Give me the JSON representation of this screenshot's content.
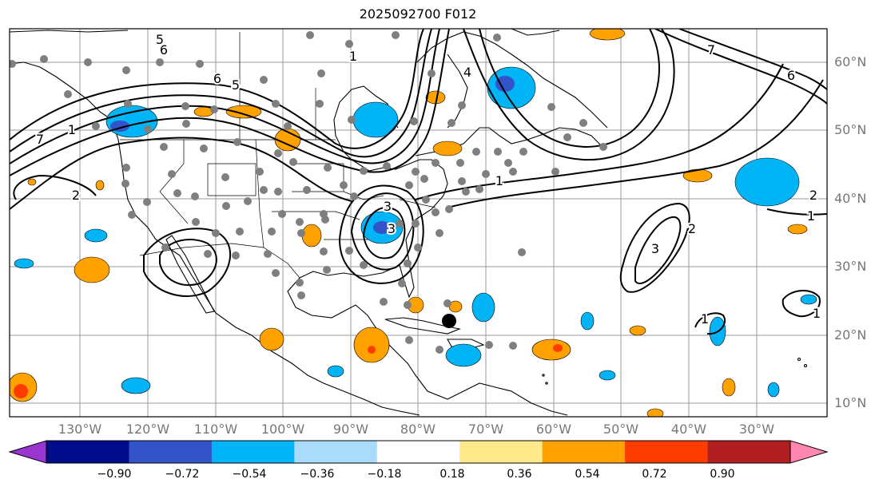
{
  "title": "2025092700 F012",
  "lat_labels": [
    "60°N",
    "50°N",
    "40°N",
    "30°N",
    "20°N",
    "10°N"
  ],
  "lon_labels": [
    "130°W",
    "120°W",
    "110°W",
    "100°W",
    "90°W",
    "80°W",
    "70°W",
    "60°W",
    "50°W",
    "40°W",
    "30°W"
  ],
  "colorbar": {
    "ticks": [
      "−0.90",
      "−0.72",
      "−0.54",
      "−0.36",
      "−0.18",
      "0.18",
      "0.36",
      "0.54",
      "0.72",
      "0.90"
    ],
    "colors": [
      "#9a35d2",
      "#000c8a",
      "#3353c9",
      "#00b4f5",
      "#a9dcfb",
      "#ffffff",
      "#ffe98a",
      "#ffa200",
      "#ff3c00",
      "#b01e22",
      "#ff86b0"
    ]
  },
  "contour_labels": [
    "5",
    "6",
    "1",
    "5",
    "6",
    "4",
    "1",
    "7",
    "2",
    "1",
    "2",
    "3",
    "3",
    "2",
    "1",
    "3",
    "1",
    "6",
    "7",
    "1"
  ],
  "fill_colors": {
    "light_blue": "#a9dcfb",
    "blue": "#00b4f5",
    "royal": "#3353c9",
    "orange": "#ffa200",
    "red": "#ff3c00"
  },
  "station_color": "#7f7f7f",
  "marker_color": "#000000"
}
